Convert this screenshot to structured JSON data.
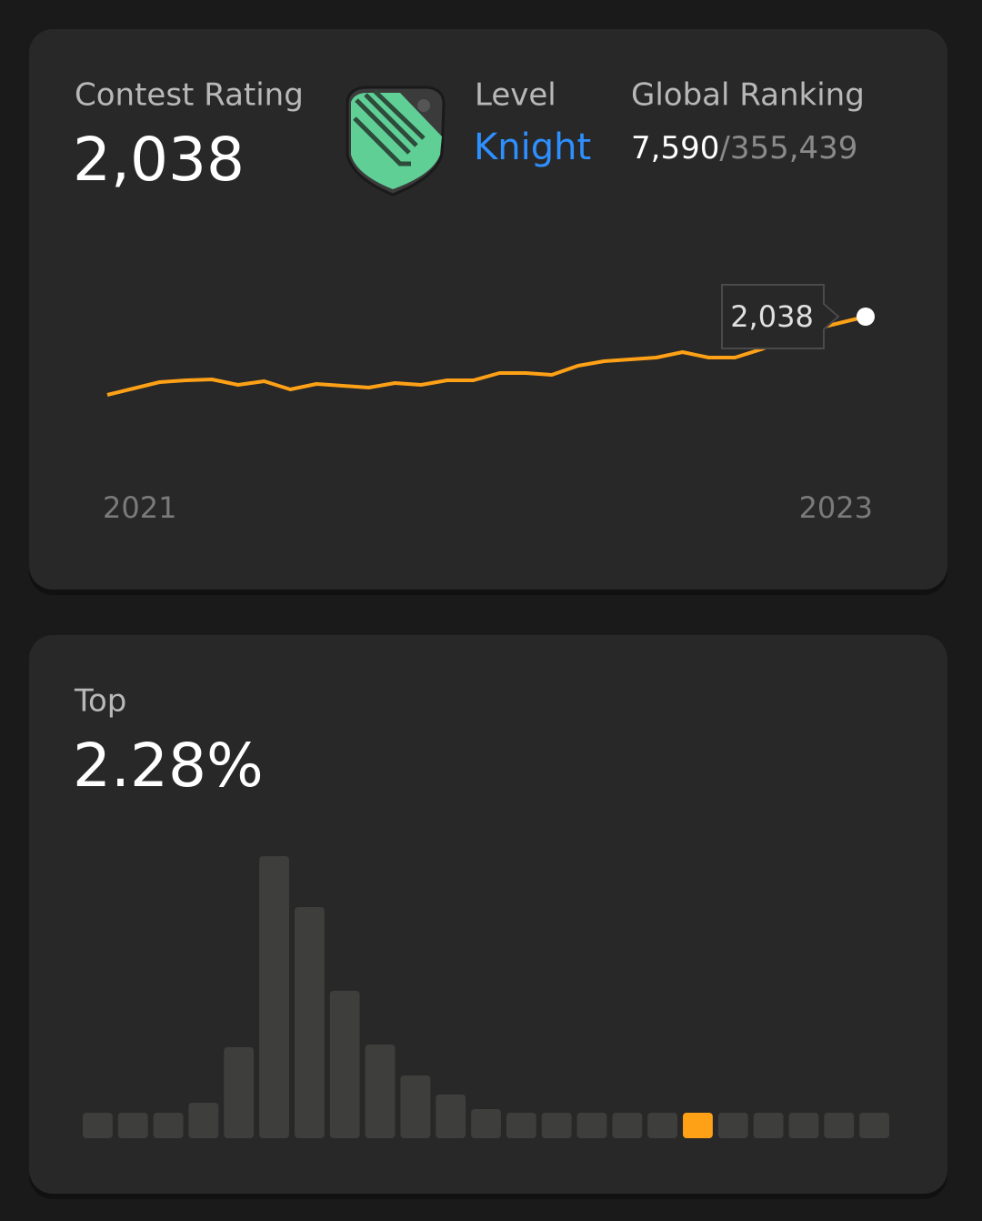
{
  "rating_card": {
    "rating_label": "Contest Rating",
    "rating": "2,038",
    "level_label": "Level",
    "level": "Knight",
    "ranking_label": "Global Ranking",
    "rank": "7,590",
    "separator": "/",
    "total": "355,439"
  },
  "top_card": {
    "label": "Top",
    "value": "2.28%"
  },
  "chart_data": [
    {
      "type": "line",
      "categories": [
        "2021",
        null,
        null,
        null,
        null,
        null,
        null,
        null,
        null,
        null,
        null,
        null,
        null,
        null,
        null,
        null,
        null,
        null,
        null,
        null,
        null,
        null,
        null,
        null,
        null,
        null,
        null,
        null,
        null,
        "2023"
      ],
      "values": [
        1608,
        1643,
        1678,
        1688,
        1693,
        1663,
        1683,
        1638,
        1668,
        1658,
        1648,
        1673,
        1663,
        1688,
        1688,
        1728,
        1728,
        1718,
        1768,
        1793,
        1803,
        1813,
        1843,
        1813,
        1813,
        1858,
        1913,
        1968,
        2003,
        2038
      ],
      "value_labels": [
        null,
        null,
        null,
        null,
        null,
        null,
        null,
        null,
        null,
        null,
        null,
        null,
        null,
        null,
        null,
        null,
        null,
        null,
        null,
        null,
        null,
        null,
        null,
        null,
        null,
        null,
        null,
        null,
        null,
        "2,038"
      ],
      "color": "#ffa116",
      "ylim": [
        1200,
        2400
      ]
    },
    {
      "type": "bar",
      "values": [
        28,
        28,
        28,
        39,
        100,
        310,
        254,
        162,
        103,
        69,
        48,
        32,
        28,
        28,
        28,
        28,
        28,
        28,
        28,
        28,
        28,
        28,
        28
      ],
      "colors": [
        "#3e3f3c",
        "#3e3f3c",
        "#3e3f3c",
        "#3e3f3c",
        "#3e3f3c",
        "#3e3f3c",
        "#3e3f3c",
        "#3e3f3c",
        "#3e3f3c",
        "#3e3f3c",
        "#3e3f3c",
        "#3e3f3c",
        "#3e3f3c",
        "#3e3f3c",
        "#3e3f3c",
        "#3e3f3c",
        "#3e3f3c",
        "#ffa116",
        "#3e3f3c",
        "#3e3f3c",
        "#3e3f3c",
        "#3e3f3c",
        "#3e3f3c"
      ],
      "ylim": [
        0,
        320
      ]
    }
  ]
}
